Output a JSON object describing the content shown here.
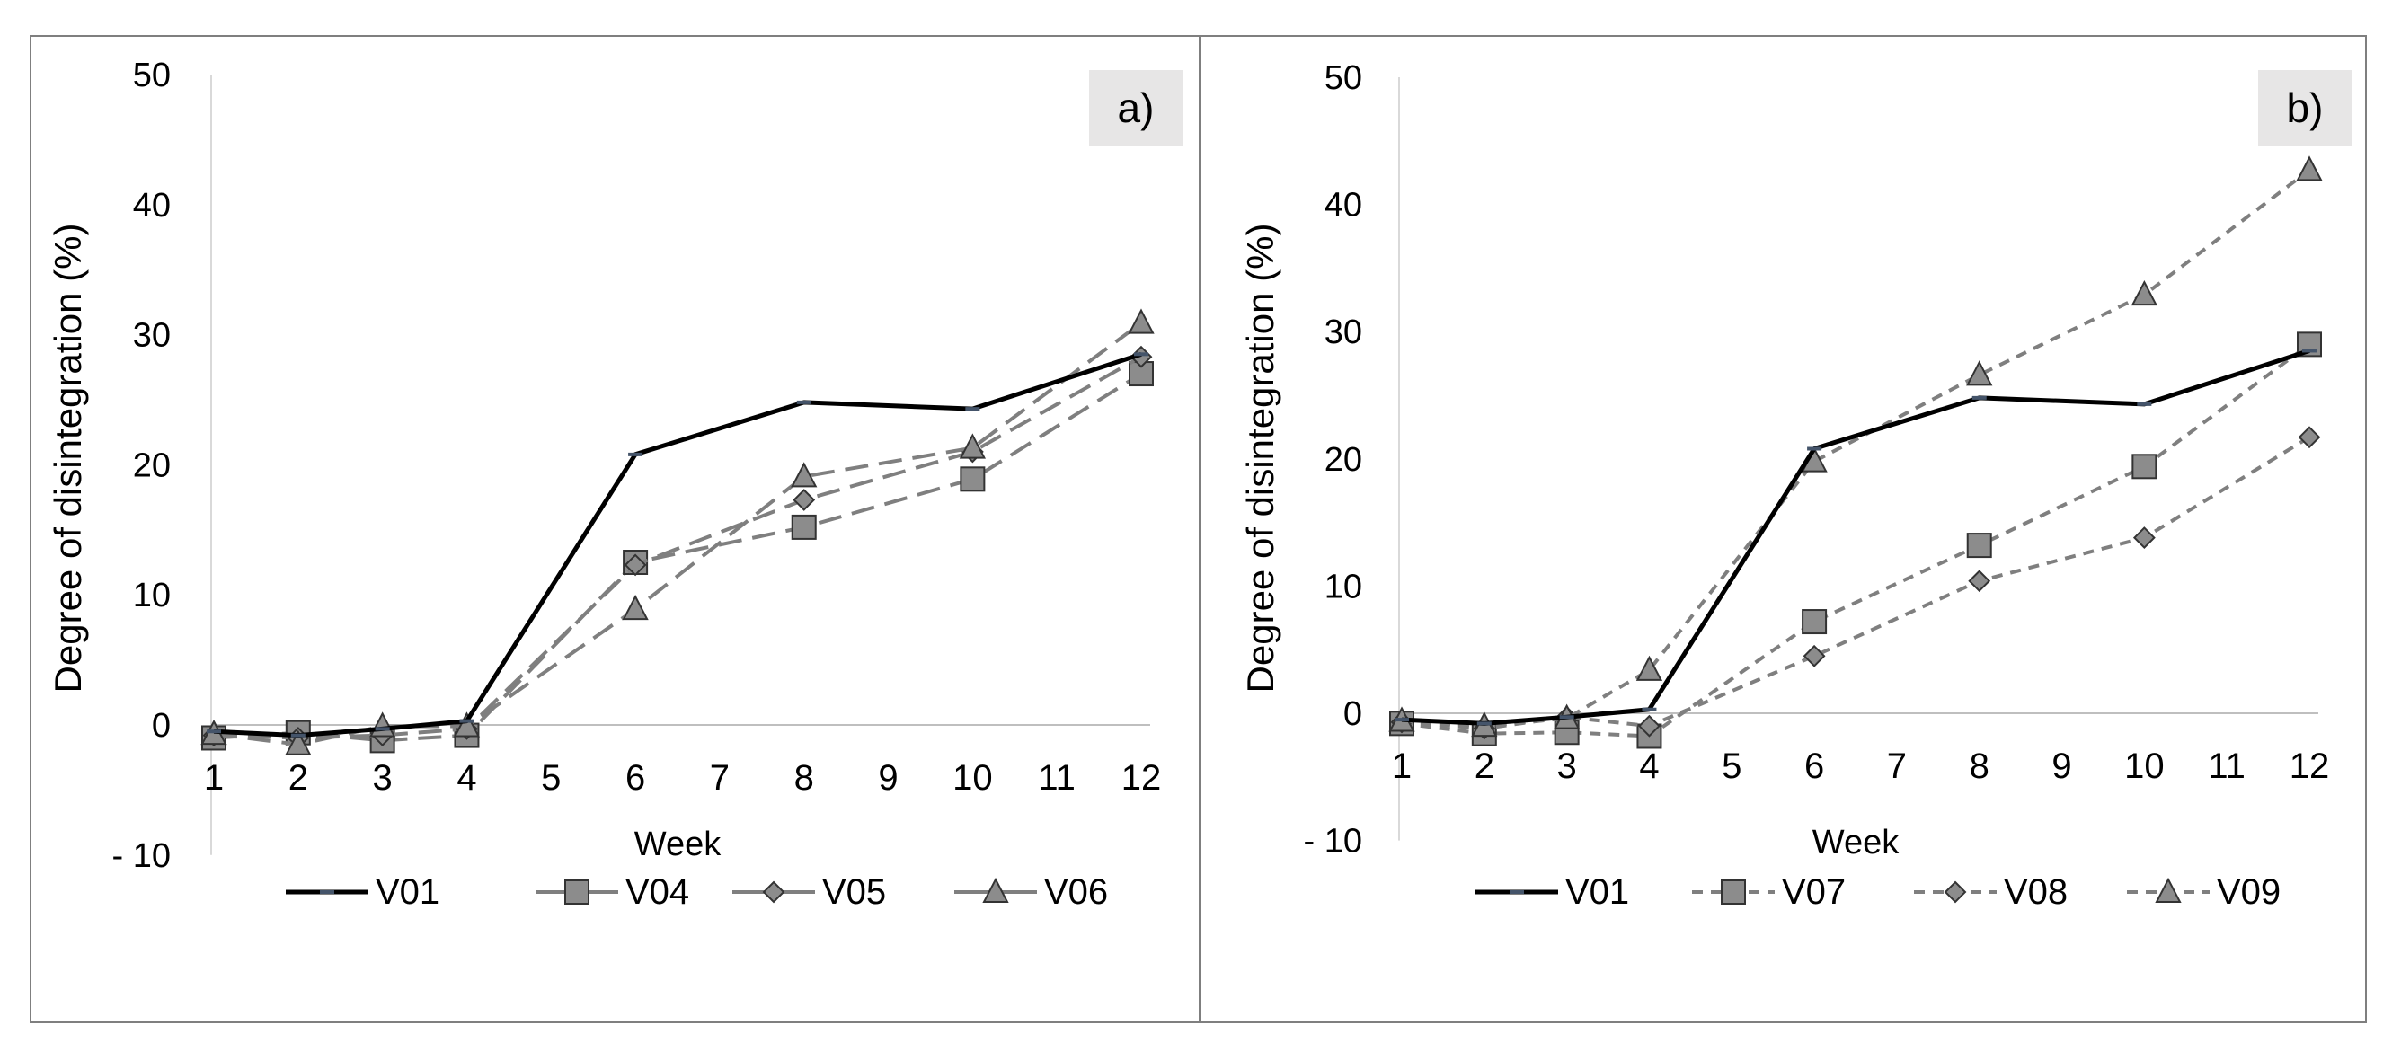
{
  "chart_data": [
    {
      "type": "line",
      "panel_label": "a)",
      "xlabel": "Week",
      "ylabel": "Degree of disintegration (%)",
      "ylim": [
        -10,
        50
      ],
      "y_ticks": [
        "- 10",
        "0",
        "10",
        "20",
        "30",
        "40",
        "50"
      ],
      "categories": [
        "1",
        "2",
        "3",
        "4",
        "5",
        "6",
        "7",
        "8",
        "9",
        "10",
        "11",
        "12"
      ],
      "series": [
        {
          "name": "V01",
          "marker": "dash",
          "dashed": false,
          "color": "#000000",
          "x": [
            1,
            2,
            3,
            4,
            6,
            8,
            10,
            12
          ],
          "values": [
            -0.5,
            -0.8,
            -0.3,
            0.3,
            20.8,
            24.8,
            24.3,
            28.5
          ]
        },
        {
          "name": "V04",
          "marker": "square",
          "dashed": true,
          "color": "#7f7f7f",
          "x": [
            1,
            2,
            3,
            4,
            6,
            8,
            10,
            12
          ],
          "values": [
            -1.0,
            -0.6,
            -1.2,
            -0.8,
            12.5,
            15.2,
            18.9,
            27.0
          ]
        },
        {
          "name": "V05",
          "marker": "diamond",
          "dashed": true,
          "color": "#7f7f7f",
          "x": [
            1,
            2,
            3,
            4,
            6,
            8,
            10,
            12
          ],
          "values": [
            -0.8,
            -1.0,
            -0.8,
            -0.3,
            12.3,
            17.3,
            21.0,
            28.3
          ]
        },
        {
          "name": "V06",
          "marker": "triangle",
          "dashed": true,
          "color": "#7f7f7f",
          "x": [
            1,
            2,
            3,
            4,
            6,
            8,
            10,
            12
          ],
          "values": [
            -0.7,
            -1.5,
            -0.1,
            -0.1,
            8.9,
            19.1,
            21.3,
            30.9
          ]
        }
      ]
    },
    {
      "type": "line",
      "panel_label": "b)",
      "xlabel": "Week",
      "ylabel": "Degree of disintegration (%)",
      "ylim": [
        -10,
        50
      ],
      "y_ticks": [
        "- 10",
        "0",
        "10",
        "20",
        "30",
        "40",
        "50"
      ],
      "categories": [
        "1",
        "2",
        "3",
        "4",
        "5",
        "6",
        "7",
        "8",
        "9",
        "10",
        "11",
        "12"
      ],
      "series": [
        {
          "name": "V01",
          "marker": "dash",
          "dashed": false,
          "color": "#000000",
          "x": [
            1,
            2,
            3,
            4,
            6,
            8,
            10,
            12
          ],
          "values": [
            -0.5,
            -0.8,
            -0.3,
            0.3,
            20.8,
            24.8,
            24.3,
            28.5
          ]
        },
        {
          "name": "V07",
          "marker": "square",
          "dashed": true,
          "color": "#7f7f7f",
          "x": [
            1,
            2,
            3,
            4,
            6,
            8,
            10,
            12
          ],
          "values": [
            -0.8,
            -1.6,
            -1.5,
            -1.8,
            7.2,
            13.2,
            19.4,
            29.0
          ]
        },
        {
          "name": "V08",
          "marker": "diamond",
          "dashed": true,
          "color": "#7f7f7f",
          "x": [
            1,
            2,
            3,
            4,
            6,
            8,
            10,
            12
          ],
          "values": [
            -0.7,
            -1.2,
            -0.3,
            -1.0,
            4.5,
            10.4,
            13.8,
            21.7
          ]
        },
        {
          "name": "V09",
          "marker": "triangle",
          "dashed": true,
          "color": "#7f7f7f",
          "x": [
            1,
            2,
            3,
            4,
            6,
            8,
            10,
            12
          ],
          "values": [
            -0.6,
            -1.0,
            -0.4,
            3.4,
            19.8,
            26.6,
            32.9,
            42.7
          ]
        }
      ]
    }
  ]
}
